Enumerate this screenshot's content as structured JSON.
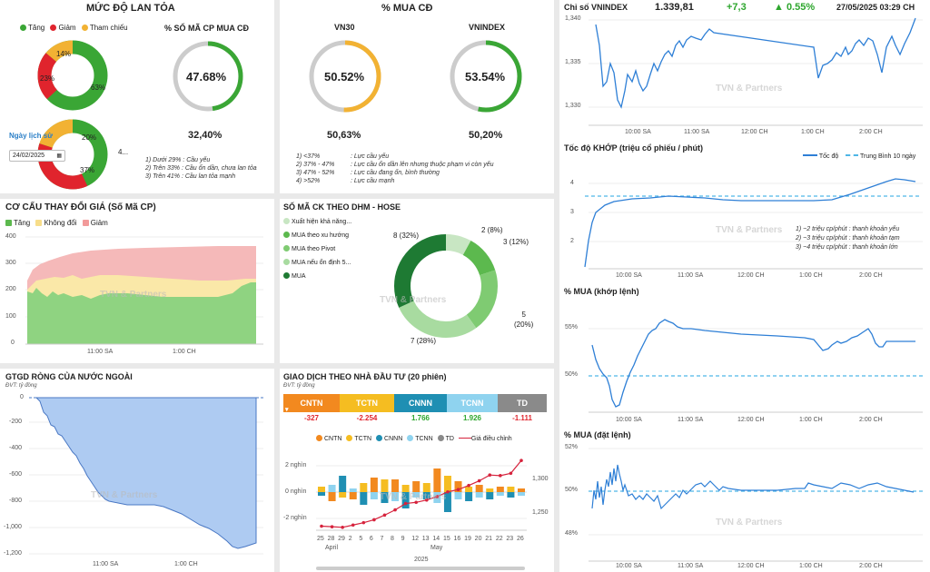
{
  "spread": {
    "title": "MỨC ĐỘ LAN TỎA",
    "legend": [
      "Tăng",
      "Giảm",
      "Tham chiếu"
    ],
    "colors": {
      "up": "#3aa635",
      "down": "#e0242d",
      "ref": "#f2b233"
    },
    "donut1": {
      "up": "63%",
      "down": "23%",
      "ref": "14%",
      "values": [
        63,
        23,
        14
      ]
    },
    "gauge_title": "% SỐ MÃ CP MUA CĐ",
    "gauge_value": "47.68%",
    "gauge_fraction": 0.4768,
    "history_label": "Ngày lịch sử",
    "history_date": "24/02/2025",
    "donut2": {
      "up": "4...",
      "down": "37%",
      "ref": "20%",
      "values": [
        43,
        37,
        20
      ]
    },
    "hist_value": "32,40%",
    "notes": [
      "1) Dưới 29% : Cầu yếu",
      "2) Trên 33% : Cầu ổn dần, chưa lan tỏa",
      "3) Trên 41% : Cầu lan tỏa mạnh"
    ]
  },
  "buy": {
    "title": "% MUA CĐ",
    "vn30_label": "VN30",
    "vn30_value": "50.52%",
    "vn30_fraction": 0.5052,
    "vni_label": "VNINDEX",
    "vni_value": "53.54%",
    "vni_fraction": 0.5354,
    "vn30_hist": "50,63%",
    "vni_hist": "50,20%",
    "notes": [
      {
        "k": "1) <37%",
        "v": ": Lực cầu yếu"
      },
      {
        "k": "2) 37% - 47%",
        "v": ": Lực cầu ổn dần lên nhưng thuộc phạm vi còn yếu"
      },
      {
        "k": "3) 47% - 52%",
        "v": ": Lực cầu đang ổn, bình thường"
      },
      {
        "k": "4) >52%",
        "v": ": Lực cầu mạnh"
      }
    ]
  },
  "vnindex": {
    "label": "Chỉ số VNINDEX",
    "value": "1.339,81",
    "change": "+7,3",
    "pct": "▲ 0.55%",
    "time": "27/05/2025 03:29 CH",
    "yticks": [
      "1,340",
      "1,335",
      "1,330"
    ],
    "xticks": [
      "10:00 SA",
      "11:00 SA",
      "12:00 CH",
      "1:00 CH",
      "2:00 CH"
    ]
  },
  "speed": {
    "title": "Tốc độ KHỚP (triệu cổ phiếu / phút)",
    "legend_speed": "Tốc độ",
    "legend_avg": "Trung Bình 10 ngày",
    "yticks": [
      "4",
      "3",
      "2"
    ],
    "xticks": [
      "10:00 SA",
      "11:00 SA",
      "12:00 CH",
      "1:00 CH",
      "2:00 CH"
    ],
    "notes": [
      "1) ~2 triệu cp/phút : thanh khoản yếu",
      "2) ~3 triệu cp/phút : thanh khoản tạm",
      "3) ~4 triệu cp/phút : thanh khoản lớn"
    ]
  },
  "buy_match": {
    "title": "% MUA (khớp lệnh)",
    "yticks": [
      "55%",
      "50%"
    ],
    "xticks": [
      "10:00 SA",
      "11:00 SA",
      "12:00 CH",
      "1:00 CH",
      "2:00 CH"
    ]
  },
  "buy_order": {
    "title": "% MUA (đặt lệnh)",
    "yticks": [
      "52%",
      "50%",
      "48%"
    ],
    "xticks": [
      "10:00 SA",
      "11:00 SA",
      "12:00 CH",
      "1:00 CH",
      "2:00 CH"
    ]
  },
  "price_struct": {
    "title": "CƠ CẤU THAY ĐỔI GIÁ (Số Mã CP)",
    "legend": [
      "Tăng",
      "Không đổi",
      "Giảm"
    ],
    "yticks": [
      "400",
      "300",
      "200",
      "100",
      "0"
    ],
    "xticks": [
      "11:00 SA",
      "1:00 CH"
    ]
  },
  "dhm": {
    "title": "SỐ MÃ CK THEO DHM - HOSE",
    "legend": [
      "Xuất hiện khả năng...",
      "MUA theo xu hướng",
      "MUA theo Pivot",
      "MUA nếu ổn định 5...",
      "MUA"
    ],
    "colors": [
      "#c8e6c3",
      "#5cb94e",
      "#7fcb72",
      "#a8dba0",
      "#1e7a33"
    ],
    "labels": [
      "2 (8%)",
      "3 (12%)",
      "5\n(20%)",
      "7 (28%)",
      "8 (32%)"
    ],
    "values": [
      2,
      3,
      5,
      7,
      8
    ]
  },
  "foreign": {
    "title": "GTGD RÒNG CỦA NƯỚC NGOÀI",
    "unit": "ĐVT: tỷ đồng",
    "yticks": [
      "0",
      "-200",
      "-400",
      "-600",
      "-800",
      "-1,000",
      "-1,200"
    ],
    "xticks": [
      "11:00 SA",
      "1:00 CH"
    ]
  },
  "investor": {
    "title": "GIAO DỊCH THEO NHÀ ĐẦU TƯ (20 phiên)",
    "unit": "ĐVT: tỷ đồng",
    "boxes": [
      {
        "name": "CNTN",
        "value": "-327",
        "color": "#f2891f"
      },
      {
        "name": "TCTN",
        "value": "-2.254",
        "color": "#f5bd21"
      },
      {
        "name": "CNNN",
        "value": "1.766",
        "color": "#1f8fb3"
      },
      {
        "name": "TCNN",
        "value": "1.926",
        "color": "#8fd3ef"
      },
      {
        "name": "TD",
        "value": "-1.111",
        "color": "#8a8a8a"
      }
    ],
    "legend": [
      "CNTN",
      "TCTN",
      "CNNN",
      "TCNN",
      "TD",
      "Giá điều chỉnh"
    ],
    "yticks_left": [
      "2 nghìn",
      "0 nghìn",
      "-2 nghìn"
    ],
    "yticks_right": [
      "1,300",
      "1,250"
    ],
    "xticks": [
      "25",
      "28",
      "29",
      "2",
      "5",
      "6",
      "7",
      "8",
      "9",
      "12",
      "13",
      "14",
      "15",
      "16",
      "19",
      "20",
      "21",
      "22",
      "23",
      "26"
    ],
    "month_labels": [
      "April",
      "May"
    ],
    "year": "2025",
    "chart_data": {
      "type": "bar",
      "categories": [
        "25",
        "28",
        "29",
        "2",
        "5",
        "6",
        "7",
        "8",
        "9",
        "12",
        "13",
        "14",
        "15",
        "16",
        "19",
        "20",
        "21",
        "22",
        "23",
        "26"
      ],
      "series": [
        {
          "name": "Giá điều chỉnh",
          "values": [
            1227,
            1226,
            1225,
            1229,
            1233,
            1238,
            1246,
            1255,
            1266,
            1268,
            1272,
            1278,
            1286,
            1290,
            1297,
            1305,
            1315,
            1314,
            1318,
            1340
          ]
        }
      ]
    }
  },
  "watermark": "TVN & Partners"
}
